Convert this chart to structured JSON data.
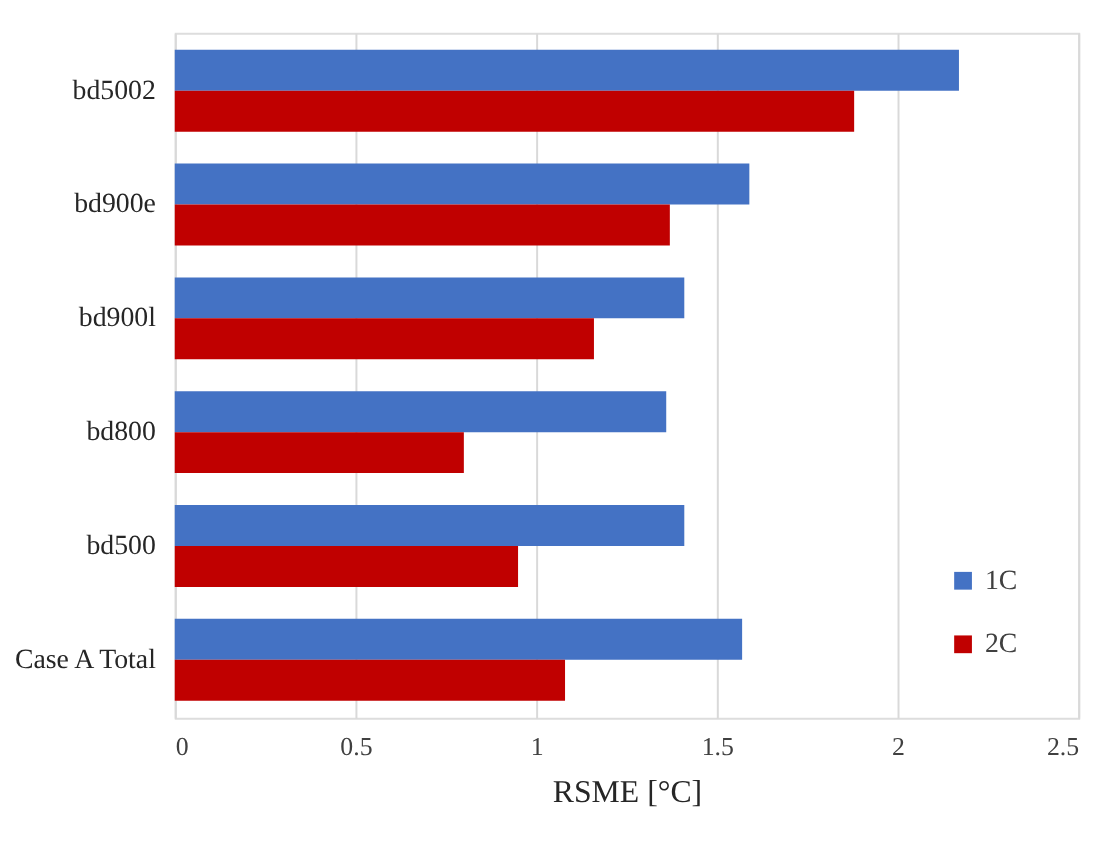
{
  "chart_data": {
    "type": "bar",
    "orientation": "horizontal",
    "xlabel": "RSME [°C]",
    "categories": [
      "bd5002",
      "bd900e",
      "bd900l",
      "bd800",
      "bd500",
      "Case A Total"
    ],
    "series": [
      {
        "name": "1C",
        "color": "#4472c4",
        "values": [
          2.17,
          1.59,
          1.41,
          1.36,
          1.41,
          1.57
        ]
      },
      {
        "name": "2C",
        "color": "#c00000",
        "values": [
          1.88,
          1.37,
          1.16,
          0.8,
          0.95,
          1.08
        ]
      }
    ],
    "xlim": [
      0,
      2.5
    ],
    "xticks": [
      0,
      0.5,
      1,
      1.5,
      2,
      2.5
    ],
    "grid": "x",
    "legend": "bottom right"
  }
}
